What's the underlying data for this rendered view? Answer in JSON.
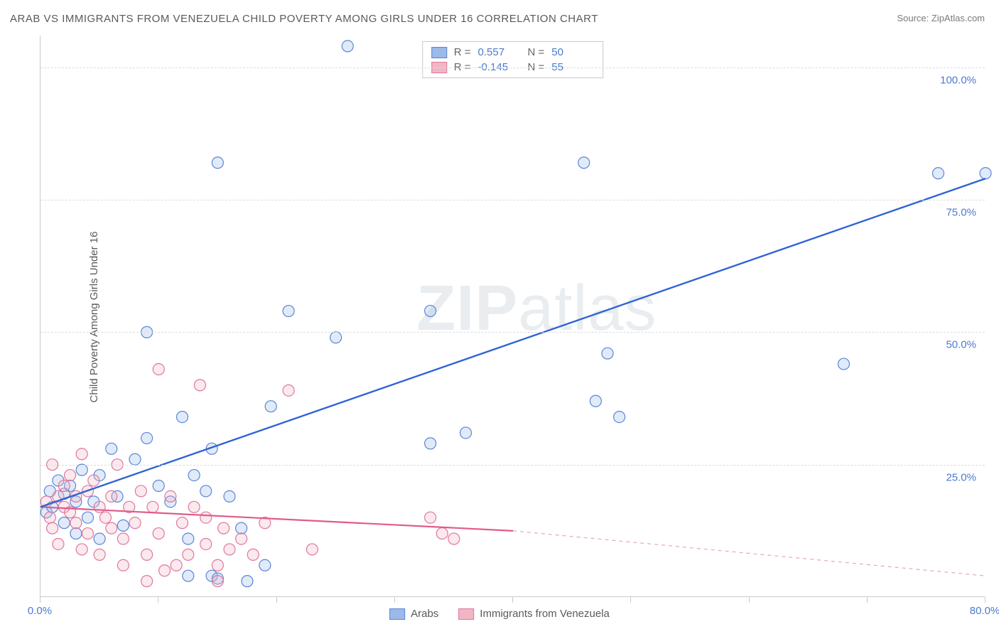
{
  "title": "ARAB VS IMMIGRANTS FROM VENEZUELA CHILD POVERTY AMONG GIRLS UNDER 16 CORRELATION CHART",
  "source_label": "Source: ZipAtlas.com",
  "y_axis_label": "Child Poverty Among Girls Under 16",
  "watermark": {
    "bold": "ZIP",
    "light": "atlas"
  },
  "chart": {
    "type": "scatter",
    "x_domain": [
      0,
      80
    ],
    "y_domain": [
      0,
      106
    ],
    "x_ticks": [
      0,
      80
    ],
    "x_tick_labels": [
      "0.0%",
      "80.0%"
    ],
    "x_tick_marks": [
      0,
      10,
      20,
      30,
      40,
      50,
      60,
      70,
      80
    ],
    "y_ticks": [
      25,
      50,
      75,
      100
    ],
    "y_tick_labels": [
      "25.0%",
      "50.0%",
      "75.0%",
      "100.0%"
    ],
    "grid_color": "#dcdcdc",
    "axis_color": "#c9c9c9",
    "background_color": "#ffffff",
    "marker_radius": 8,
    "marker_stroke_width": 1.2,
    "marker_fill_opacity": 0.3,
    "series": [
      {
        "name": "Arabs",
        "color_fill": "#9cb9e8",
        "color_stroke": "#5a86d6",
        "points": [
          [
            0.5,
            16
          ],
          [
            0.8,
            20
          ],
          [
            1,
            17
          ],
          [
            1.5,
            22
          ],
          [
            2,
            19.5
          ],
          [
            2,
            14
          ],
          [
            2.5,
            21
          ],
          [
            3,
            12
          ],
          [
            3,
            18
          ],
          [
            3.5,
            24
          ],
          [
            4,
            15
          ],
          [
            4.5,
            18
          ],
          [
            5,
            23
          ],
          [
            5,
            11
          ],
          [
            6,
            28
          ],
          [
            6.5,
            19
          ],
          [
            7,
            13.5
          ],
          [
            8,
            26
          ],
          [
            9,
            30
          ],
          [
            9,
            50
          ],
          [
            10,
            21
          ],
          [
            11,
            18
          ],
          [
            12,
            34
          ],
          [
            12.5,
            4
          ],
          [
            12.5,
            11
          ],
          [
            13,
            23
          ],
          [
            14,
            20
          ],
          [
            14.5,
            28
          ],
          [
            14.5,
            4
          ],
          [
            15,
            3.5
          ],
          [
            15,
            82
          ],
          [
            16,
            19
          ],
          [
            17,
            13
          ],
          [
            17.5,
            3
          ],
          [
            19,
            6
          ],
          [
            19.5,
            36
          ],
          [
            21,
            54
          ],
          [
            25,
            49
          ],
          [
            26,
            104
          ],
          [
            33,
            29
          ],
          [
            33,
            54
          ],
          [
            36,
            31
          ],
          [
            46,
            82
          ],
          [
            47,
            37
          ],
          [
            48,
            46
          ],
          [
            49,
            34
          ],
          [
            68,
            44
          ],
          [
            76,
            80
          ],
          [
            80,
            80
          ]
        ],
        "trend": {
          "x1": 0,
          "y1": 17,
          "x2": 80,
          "y2": 79,
          "color": "#2f63d6",
          "width": 2.4
        },
        "R": "0.557",
        "N": "50"
      },
      {
        "name": "Immigrants from Venezuela",
        "color_fill": "#f0b6c4",
        "color_stroke": "#e077a0",
        "points": [
          [
            0.5,
            18
          ],
          [
            0.8,
            15
          ],
          [
            1,
            25
          ],
          [
            1,
            13
          ],
          [
            1.5,
            19
          ],
          [
            1.5,
            10
          ],
          [
            2,
            17
          ],
          [
            2,
            21
          ],
          [
            2.5,
            16
          ],
          [
            2.5,
            23
          ],
          [
            3,
            14
          ],
          [
            3,
            19
          ],
          [
            3.5,
            27
          ],
          [
            3.5,
            9
          ],
          [
            4,
            12
          ],
          [
            4,
            20
          ],
          [
            4.5,
            22
          ],
          [
            5,
            17
          ],
          [
            5,
            8
          ],
          [
            5.5,
            15
          ],
          [
            6,
            13
          ],
          [
            6,
            19
          ],
          [
            6.5,
            25
          ],
          [
            7,
            11
          ],
          [
            7,
            6
          ],
          [
            7.5,
            17
          ],
          [
            8,
            14
          ],
          [
            8.5,
            20
          ],
          [
            9,
            8
          ],
          [
            9,
            3
          ],
          [
            9.5,
            17
          ],
          [
            10,
            12
          ],
          [
            10,
            43
          ],
          [
            10.5,
            5
          ],
          [
            11,
            19
          ],
          [
            11.5,
            6
          ],
          [
            12,
            14
          ],
          [
            12.5,
            8
          ],
          [
            13,
            17
          ],
          [
            13.5,
            40
          ],
          [
            14,
            10
          ],
          [
            14,
            15
          ],
          [
            15,
            6
          ],
          [
            15,
            3
          ],
          [
            15.5,
            13
          ],
          [
            16,
            9
          ],
          [
            17,
            11
          ],
          [
            18,
            8
          ],
          [
            19,
            14
          ],
          [
            21,
            39
          ],
          [
            23,
            9
          ],
          [
            33,
            15
          ],
          [
            34,
            12
          ],
          [
            35,
            11
          ]
        ],
        "trend": {
          "x1": 0,
          "y1": 17,
          "x2": 40,
          "y2": 12.5,
          "color": "#e05c8a",
          "width": 2.2
        },
        "trend_dash": {
          "x1": 40,
          "y1": 12.5,
          "x2": 80,
          "y2": 4,
          "color": "#e9a4bc",
          "width": 1.2
        },
        "R": "-0.145",
        "N": "55"
      }
    ]
  },
  "legend_top": {
    "r_label": "R =",
    "n_label": "N ="
  },
  "legend_bottom": [
    {
      "label": "Arabs",
      "fill": "#9cb9e8",
      "stroke": "#5a86d6"
    },
    {
      "label": "Immigrants from Venezuela",
      "fill": "#f0b6c4",
      "stroke": "#e077a0"
    }
  ]
}
